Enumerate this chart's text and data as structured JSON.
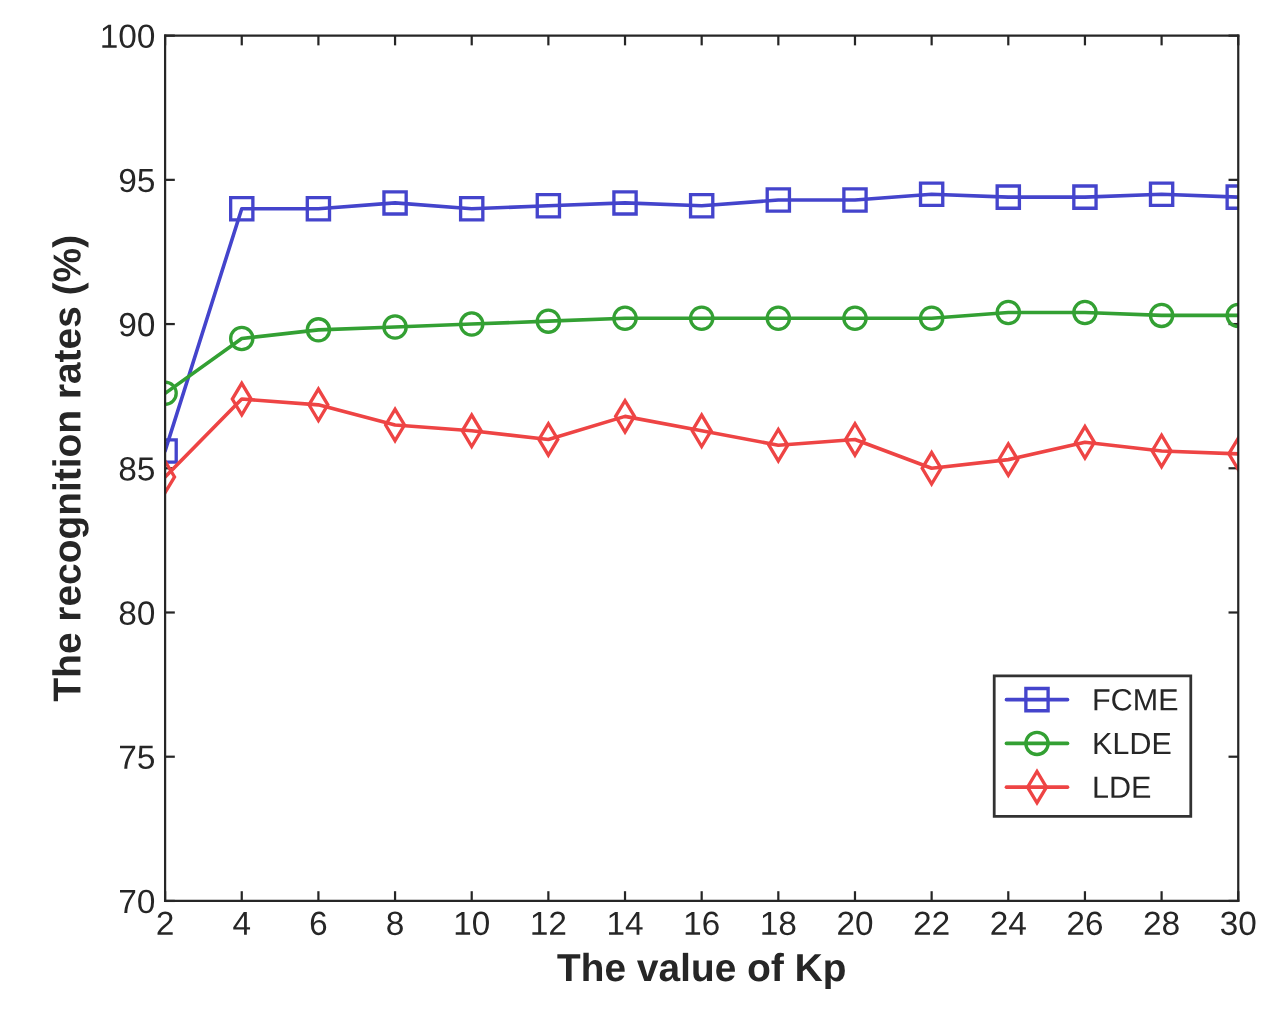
{
  "chart_data": {
    "type": "line",
    "xlabel": "The value of Kp",
    "ylabel": "The recognition rates (%)",
    "x": [
      2,
      4,
      6,
      8,
      10,
      12,
      14,
      16,
      18,
      20,
      22,
      24,
      26,
      28,
      30
    ],
    "series": [
      {
        "name": "FCME",
        "color": "#4444cc",
        "marker": "square",
        "values": [
          85.6,
          94.0,
          94.0,
          94.2,
          94.0,
          94.1,
          94.2,
          94.1,
          94.3,
          94.3,
          94.5,
          94.4,
          94.4,
          94.5,
          94.4
        ]
      },
      {
        "name": "KLDE",
        "color": "#33a033",
        "marker": "circle",
        "values": [
          87.6,
          89.5,
          89.8,
          89.9,
          90.0,
          90.1,
          90.2,
          90.2,
          90.2,
          90.2,
          90.2,
          90.4,
          90.4,
          90.3,
          90.3
        ]
      },
      {
        "name": "LDE",
        "color": "#ee4444",
        "marker": "diamond",
        "values": [
          84.7,
          87.4,
          87.2,
          86.5,
          86.3,
          86.0,
          86.8,
          86.3,
          85.8,
          86.0,
          85.0,
          85.3,
          85.9,
          85.6,
          85.5
        ]
      }
    ],
    "xlim": [
      2,
      30
    ],
    "xticks": [
      2,
      4,
      6,
      8,
      10,
      12,
      14,
      16,
      18,
      20,
      22,
      24,
      26,
      28,
      30
    ],
    "ylim": [
      70,
      100
    ],
    "yticks": [
      70,
      75,
      80,
      85,
      90,
      95,
      100
    ],
    "grid": false,
    "legend": "bottom right",
    "line_style": "solid"
  }
}
